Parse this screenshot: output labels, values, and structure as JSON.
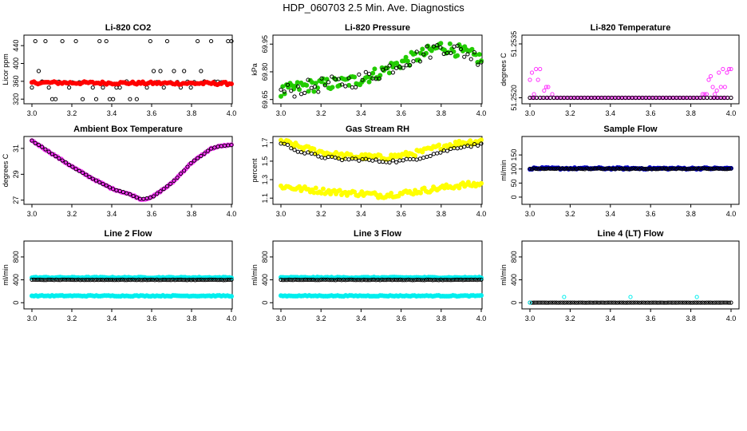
{
  "page_title": "HDP_060703  2.5 Min. Ave. Diagnostics",
  "colors": {
    "black": "#000000",
    "red": "#ff0000",
    "green": "#22cc00",
    "magenta": "#ff33ff",
    "yellow": "#ffff00",
    "blue": "#0000cc",
    "cyan": "#00eeee"
  },
  "chart_data": [
    {
      "type": "scatter",
      "title": "Li-820 CO2",
      "ylabel": "Licor ppm",
      "xlim": [
        3.0,
        4.0
      ],
      "ylim": [
        315,
        460
      ],
      "xticks": [
        "3.0",
        "3.2",
        "3.4",
        "3.6",
        "3.8",
        "4.0"
      ],
      "yticks": [
        "320",
        "360",
        "400",
        "440"
      ],
      "series": [
        {
          "marker": "open",
          "color": "#000000",
          "pattern": "co2-open",
          "y_levels": [
            320,
            346,
            383,
            450
          ],
          "y_mean": 358
        },
        {
          "marker": "filled",
          "color": "#ff0000",
          "pattern": "band",
          "y_start": 357,
          "y_end": 355,
          "y_spread": 3
        }
      ]
    },
    {
      "type": "scatter",
      "title": "Li-820 Pressure",
      "ylabel": "kPa",
      "xlim": [
        3.0,
        4.0
      ],
      "ylim": [
        69.64,
        69.99
      ],
      "xticks": [
        "3.0",
        "3.2",
        "3.4",
        "3.6",
        "3.8",
        "4.0"
      ],
      "yticks": [
        "69.65",
        "69.80",
        "69.95"
      ],
      "series": [
        {
          "marker": "filled",
          "color": "#22cc00",
          "pattern": "curve",
          "x": [
            3.0,
            3.1,
            3.2,
            3.3,
            3.4,
            3.5,
            3.6,
            3.7,
            3.8,
            3.9,
            4.0
          ],
          "y": [
            69.69,
            69.72,
            69.73,
            69.74,
            69.76,
            69.8,
            69.85,
            69.89,
            69.94,
            69.91,
            69.87
          ],
          "y_spread": 0.035
        },
        {
          "marker": "open",
          "color": "#000000",
          "pattern": "curve",
          "x": [
            3.0,
            3.1,
            3.2,
            3.3,
            3.4,
            3.5,
            3.6,
            3.7,
            3.8,
            3.9,
            4.0
          ],
          "y": [
            69.69,
            69.71,
            69.73,
            69.74,
            69.76,
            69.8,
            69.85,
            69.89,
            69.94,
            69.91,
            69.87
          ],
          "y_spread": 0.04
        }
      ]
    },
    {
      "type": "scatter",
      "title": "Li-820 Temperature",
      "ylabel": "degrees C",
      "xlim": [
        3.0,
        4.0
      ],
      "ylim": [
        51.2519,
        51.2537
      ],
      "xticks": [
        "3.0",
        "3.2",
        "3.4",
        "3.6",
        "3.8",
        "4.0"
      ],
      "yticks": [
        "51.2520",
        "51.2535"
      ],
      "series": [
        {
          "marker": "open",
          "color": "#ff33ff",
          "pattern": "temp-edges",
          "base": 51.252,
          "step": 0.0001
        },
        {
          "marker": "open",
          "color": "#000000",
          "pattern": "flat",
          "y": 51.252
        }
      ]
    },
    {
      "type": "scatter",
      "title": "Ambient Box Temperature",
      "ylabel": "degrees C",
      "xlim": [
        3.0,
        4.0
      ],
      "ylim": [
        26.8,
        31.8
      ],
      "xticks": [
        "3.0",
        "3.2",
        "3.4",
        "3.6",
        "3.8",
        "4.0"
      ],
      "yticks": [
        "27",
        "29",
        "31"
      ],
      "series": [
        {
          "marker": "filled",
          "color": "#ff33ff",
          "pattern": "curve",
          "x": [
            3.0,
            3.1,
            3.2,
            3.3,
            3.4,
            3.5,
            3.55,
            3.6,
            3.7,
            3.8,
            3.9,
            3.95,
            4.0
          ],
          "y": [
            31.6,
            30.6,
            29.6,
            28.7,
            27.9,
            27.4,
            27.05,
            27.2,
            28.3,
            29.9,
            31.0,
            31.2,
            31.25
          ],
          "y_spread": 0.05
        },
        {
          "marker": "open",
          "color": "#000000",
          "pattern": "curve",
          "x": [
            3.0,
            3.1,
            3.2,
            3.3,
            3.4,
            3.5,
            3.55,
            3.6,
            3.7,
            3.8,
            3.9,
            3.95,
            4.0
          ],
          "y": [
            31.6,
            30.6,
            29.6,
            28.7,
            27.9,
            27.4,
            27.05,
            27.2,
            28.3,
            29.9,
            31.0,
            31.2,
            31.25
          ],
          "y_spread": 0.02
        }
      ]
    },
    {
      "type": "scatter",
      "title": "Gas Stream RH",
      "ylabel": "percent",
      "xlim": [
        3.0,
        4.0
      ],
      "ylim": [
        1.05,
        1.75
      ],
      "xticks": [
        "3.0",
        "3.2",
        "3.4",
        "3.6",
        "3.8",
        "4.0"
      ],
      "yticks": [
        "1.1",
        "1.3",
        "1.5",
        "1.7"
      ],
      "series": [
        {
          "marker": "filled",
          "color": "#ffff00",
          "pattern": "curve",
          "x": [
            3.0,
            3.1,
            3.2,
            3.3,
            3.4,
            3.5,
            3.6,
            3.7,
            3.8,
            3.9,
            4.0
          ],
          "y": [
            1.72,
            1.65,
            1.6,
            1.56,
            1.55,
            1.54,
            1.56,
            1.6,
            1.66,
            1.7,
            1.72
          ],
          "y_spread": 0.03
        },
        {
          "marker": "filled",
          "color": "#ffff00",
          "pattern": "curve",
          "x": [
            3.0,
            3.1,
            3.2,
            3.3,
            3.4,
            3.5,
            3.6,
            3.7,
            3.8,
            3.9,
            4.0
          ],
          "y": [
            1.23,
            1.2,
            1.18,
            1.16,
            1.15,
            1.13,
            1.15,
            1.18,
            1.21,
            1.24,
            1.25
          ],
          "y_spread": 0.03
        },
        {
          "marker": "open",
          "color": "#000000",
          "pattern": "curve",
          "x": [
            3.0,
            3.1,
            3.2,
            3.3,
            3.4,
            3.5,
            3.6,
            3.7,
            3.8,
            3.9,
            4.0
          ],
          "y": [
            1.7,
            1.6,
            1.55,
            1.52,
            1.52,
            1.5,
            1.5,
            1.54,
            1.6,
            1.66,
            1.68
          ],
          "y_spread": 0.015
        }
      ]
    },
    {
      "type": "scatter",
      "title": "Sample Flow",
      "ylabel": "ml/min",
      "xlim": [
        3.0,
        4.0
      ],
      "ylim": [
        -20,
        210
      ],
      "xticks": [
        "3.0",
        "3.2",
        "3.4",
        "3.6",
        "3.8",
        "4.0"
      ],
      "yticks": [
        "0",
        "50",
        "100",
        "150"
      ],
      "series": [
        {
          "marker": "filled",
          "color": "#0000cc",
          "pattern": "band",
          "y_start": 102,
          "y_end": 102,
          "y_spread": 3
        },
        {
          "marker": "open",
          "color": "#000000",
          "pattern": "band",
          "y_start": 101,
          "y_end": 101,
          "y_spread": 1.5
        }
      ]
    },
    {
      "type": "scatter",
      "title": "Line 2 Flow",
      "ylabel": "ml/min",
      "xlim": [
        3.0,
        4.0
      ],
      "ylim": [
        -80,
        1050
      ],
      "xticks": [
        "3.0",
        "3.2",
        "3.4",
        "3.6",
        "3.8",
        "4.0"
      ],
      "yticks": [
        "0",
        "400",
        "800"
      ],
      "series": [
        {
          "marker": "filled",
          "color": "#00eeee",
          "pattern": "band",
          "y_start": 440,
          "y_end": 440,
          "y_spread": 8
        },
        {
          "marker": "filled",
          "color": "#00eeee",
          "pattern": "band",
          "y_start": 120,
          "y_end": 120,
          "y_spread": 8
        },
        {
          "marker": "open",
          "color": "#000000",
          "pattern": "band",
          "y_start": 400,
          "y_end": 400,
          "y_spread": 4
        }
      ]
    },
    {
      "type": "scatter",
      "title": "Line 3 Flow",
      "ylabel": "ml/min",
      "xlim": [
        3.0,
        4.0
      ],
      "ylim": [
        -80,
        1050
      ],
      "xticks": [
        "3.0",
        "3.2",
        "3.4",
        "3.6",
        "3.8",
        "4.0"
      ],
      "yticks": [
        "0",
        "400",
        "800"
      ],
      "series": [
        {
          "marker": "filled",
          "color": "#00eeee",
          "pattern": "band",
          "y_start": 440,
          "y_end": 440,
          "y_spread": 8
        },
        {
          "marker": "filled",
          "color": "#00eeee",
          "pattern": "band",
          "y_start": 120,
          "y_end": 120,
          "y_spread": 8
        },
        {
          "marker": "open",
          "color": "#000000",
          "pattern": "band",
          "y_start": 400,
          "y_end": 400,
          "y_spread": 4
        }
      ]
    },
    {
      "type": "scatter",
      "title": "Line 4 (LT) Flow",
      "ylabel": "ml/min",
      "xlim": [
        3.0,
        4.0
      ],
      "ylim": [
        -80,
        1050
      ],
      "xticks": [
        "3.0",
        "3.2",
        "3.4",
        "3.6",
        "3.8",
        "4.0"
      ],
      "yticks": [
        "0",
        "400",
        "800"
      ],
      "series": [
        {
          "marker": "open",
          "color": "#000000",
          "pattern": "band",
          "y_start": 2,
          "y_end": 2,
          "y_spread": 1
        },
        {
          "marker": "open",
          "color": "#00eeee",
          "pattern": "points",
          "x": [
            3.0,
            3.17,
            3.5,
            3.83
          ],
          "y": [
            2,
            100,
            100,
            100
          ]
        }
      ]
    }
  ]
}
